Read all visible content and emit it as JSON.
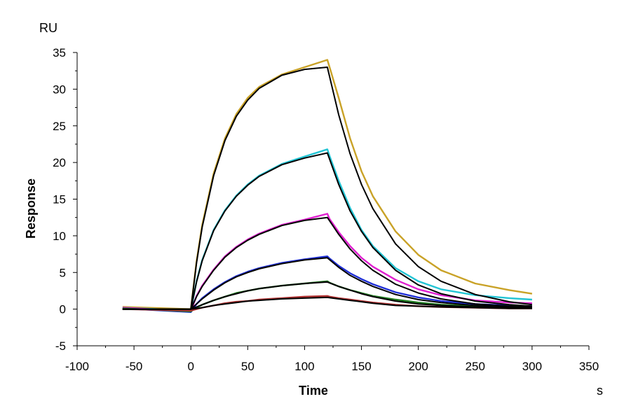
{
  "chart_data": {
    "type": "line",
    "title": "",
    "xlabel": "Time",
    "ylabel": "Response",
    "x_unit": "s",
    "y_unit": "RU",
    "xlim": [
      -100,
      350
    ],
    "ylim": [
      -5,
      35
    ],
    "x_ticks": [
      -100,
      -50,
      0,
      50,
      100,
      150,
      200,
      250,
      300,
      350
    ],
    "y_ticks": [
      -5,
      0,
      5,
      10,
      15,
      20,
      25,
      30,
      35
    ],
    "grid": false,
    "legend": "none",
    "series": [
      {
        "color": "#c9a227",
        "x": [
          -60,
          0,
          5,
          10,
          20,
          30,
          40,
          50,
          60,
          80,
          100,
          120,
          122,
          130,
          140,
          150,
          160,
          180,
          200,
          220,
          250,
          280,
          300
        ],
        "y": [
          0.3,
          0,
          6.5,
          11.5,
          18.5,
          23.3,
          26.6,
          28.8,
          30.3,
          32.0,
          33.0,
          34.0,
          33.0,
          28.8,
          23.3,
          18.8,
          15.4,
          10.6,
          7.4,
          5.3,
          3.5,
          2.6,
          2.1
        ]
      },
      {
        "color": "#22c4d4",
        "x": [
          -60,
          0,
          5,
          10,
          20,
          30,
          40,
          50,
          60,
          80,
          100,
          120,
          122,
          130,
          140,
          150,
          160,
          180,
          200,
          220,
          250,
          280,
          300
        ],
        "y": [
          0.2,
          -0.2,
          3.8,
          6.7,
          10.8,
          13.5,
          15.5,
          17.0,
          18.2,
          19.8,
          20.8,
          21.8,
          20.9,
          17.5,
          13.8,
          10.8,
          8.6,
          5.6,
          3.8,
          2.7,
          1.9,
          1.5,
          1.3
        ]
      },
      {
        "color": "#e020d0",
        "x": [
          -60,
          0,
          5,
          10,
          20,
          30,
          40,
          50,
          60,
          80,
          100,
          120,
          122,
          130,
          140,
          150,
          160,
          180,
          200,
          220,
          250,
          280,
          300
        ],
        "y": [
          0.2,
          -0.3,
          1.8,
          3.2,
          5.4,
          7.2,
          8.5,
          9.5,
          10.3,
          11.5,
          12.2,
          13.0,
          12.3,
          10.5,
          8.6,
          7.0,
          5.8,
          4.0,
          2.7,
          1.9,
          1.2,
          0.9,
          0.8
        ]
      },
      {
        "color": "#1f2fd6",
        "x": [
          -60,
          0,
          5,
          10,
          20,
          30,
          40,
          50,
          60,
          80,
          100,
          120,
          122,
          130,
          140,
          150,
          160,
          180,
          200,
          220,
          250,
          280,
          300
        ],
        "y": [
          0.1,
          -0.4,
          0.7,
          1.5,
          2.7,
          3.7,
          4.5,
          5.1,
          5.6,
          6.3,
          6.8,
          7.2,
          6.9,
          5.9,
          4.9,
          4.1,
          3.4,
          2.3,
          1.6,
          1.1,
          0.7,
          0.5,
          0.4
        ]
      },
      {
        "color": "#1e7a1e",
        "x": [
          -60,
          0,
          5,
          10,
          20,
          30,
          40,
          50,
          60,
          80,
          100,
          120,
          122,
          130,
          140,
          150,
          160,
          180,
          200,
          220,
          250,
          280,
          300
        ],
        "y": [
          0.1,
          -0.3,
          0.2,
          0.6,
          1.2,
          1.7,
          2.2,
          2.5,
          2.8,
          3.2,
          3.5,
          3.8,
          3.6,
          3.1,
          2.6,
          2.2,
          1.8,
          1.3,
          0.9,
          0.6,
          0.4,
          0.3,
          0.2
        ]
      },
      {
        "color": "#b03030",
        "x": [
          -60,
          0,
          5,
          10,
          20,
          30,
          40,
          50,
          60,
          80,
          100,
          120,
          122,
          130,
          140,
          150,
          160,
          180,
          200,
          220,
          250,
          280,
          300
        ],
        "y": [
          0.0,
          -0.2,
          0.0,
          0.2,
          0.5,
          0.8,
          1.0,
          1.1,
          1.3,
          1.5,
          1.7,
          1.8,
          1.7,
          1.5,
          1.3,
          1.1,
          0.9,
          0.6,
          0.4,
          0.3,
          0.2,
          0.1,
          0.1
        ]
      }
    ],
    "fits": [
      {
        "color": "#000000",
        "x": [
          -60,
          0,
          5,
          10,
          20,
          30,
          40,
          50,
          60,
          80,
          100,
          120,
          130,
          140,
          150,
          160,
          180,
          200,
          220,
          250,
          280,
          300
        ],
        "y": [
          0,
          0,
          6.3,
          11.2,
          18.2,
          23.0,
          26.3,
          28.5,
          30.1,
          31.9,
          32.7,
          33.0,
          26.5,
          21.2,
          17.0,
          13.7,
          8.9,
          5.8,
          3.8,
          2.0,
          1.0,
          0.6
        ]
      },
      {
        "color": "#000000",
        "x": [
          -60,
          0,
          5,
          10,
          20,
          30,
          40,
          50,
          60,
          80,
          100,
          120,
          130,
          140,
          150,
          160,
          180,
          200,
          220,
          250,
          280,
          300
        ],
        "y": [
          0,
          0,
          3.7,
          6.6,
          10.7,
          13.4,
          15.4,
          16.9,
          18.1,
          19.7,
          20.6,
          21.3,
          17.0,
          13.4,
          10.6,
          8.4,
          5.3,
          3.3,
          2.1,
          1.1,
          0.6,
          0.4
        ]
      },
      {
        "color": "#000000",
        "x": [
          -60,
          0,
          5,
          10,
          20,
          30,
          40,
          50,
          60,
          80,
          100,
          120,
          130,
          140,
          150,
          160,
          180,
          200,
          220,
          250,
          280,
          300
        ],
        "y": [
          0,
          0,
          1.7,
          3.1,
          5.3,
          7.1,
          8.4,
          9.4,
          10.2,
          11.4,
          12.1,
          12.5,
          10.2,
          8.2,
          6.6,
          5.3,
          3.4,
          2.2,
          1.4,
          0.7,
          0.4,
          0.3
        ]
      },
      {
        "color": "#000000",
        "x": [
          -60,
          0,
          5,
          10,
          20,
          30,
          40,
          50,
          60,
          80,
          100,
          120,
          130,
          140,
          150,
          160,
          180,
          200,
          220,
          250,
          280,
          300
        ],
        "y": [
          0,
          0,
          0.7,
          1.4,
          2.6,
          3.6,
          4.4,
          5.0,
          5.5,
          6.2,
          6.7,
          7.0,
          5.7,
          4.6,
          3.8,
          3.1,
          2.0,
          1.3,
          0.9,
          0.5,
          0.3,
          0.2
        ]
      },
      {
        "color": "#000000",
        "x": [
          -60,
          0,
          5,
          10,
          20,
          30,
          40,
          50,
          60,
          80,
          100,
          120,
          130,
          140,
          150,
          160,
          180,
          200,
          220,
          250,
          280,
          300
        ],
        "y": [
          0,
          0,
          0.3,
          0.6,
          1.2,
          1.7,
          2.1,
          2.5,
          2.8,
          3.2,
          3.5,
          3.7,
          3.1,
          2.6,
          2.1,
          1.7,
          1.1,
          0.7,
          0.5,
          0.3,
          0.2,
          0.1
        ]
      },
      {
        "color": "#000000",
        "x": [
          -60,
          0,
          5,
          10,
          20,
          30,
          40,
          50,
          60,
          80,
          100,
          120,
          130,
          140,
          150,
          160,
          180,
          200,
          220,
          250,
          280,
          300
        ],
        "y": [
          0,
          0,
          0.1,
          0.2,
          0.5,
          0.7,
          0.9,
          1.1,
          1.2,
          1.4,
          1.5,
          1.6,
          1.4,
          1.2,
          1.0,
          0.8,
          0.5,
          0.4,
          0.3,
          0.2,
          0.1,
          0.1
        ]
      }
    ]
  }
}
